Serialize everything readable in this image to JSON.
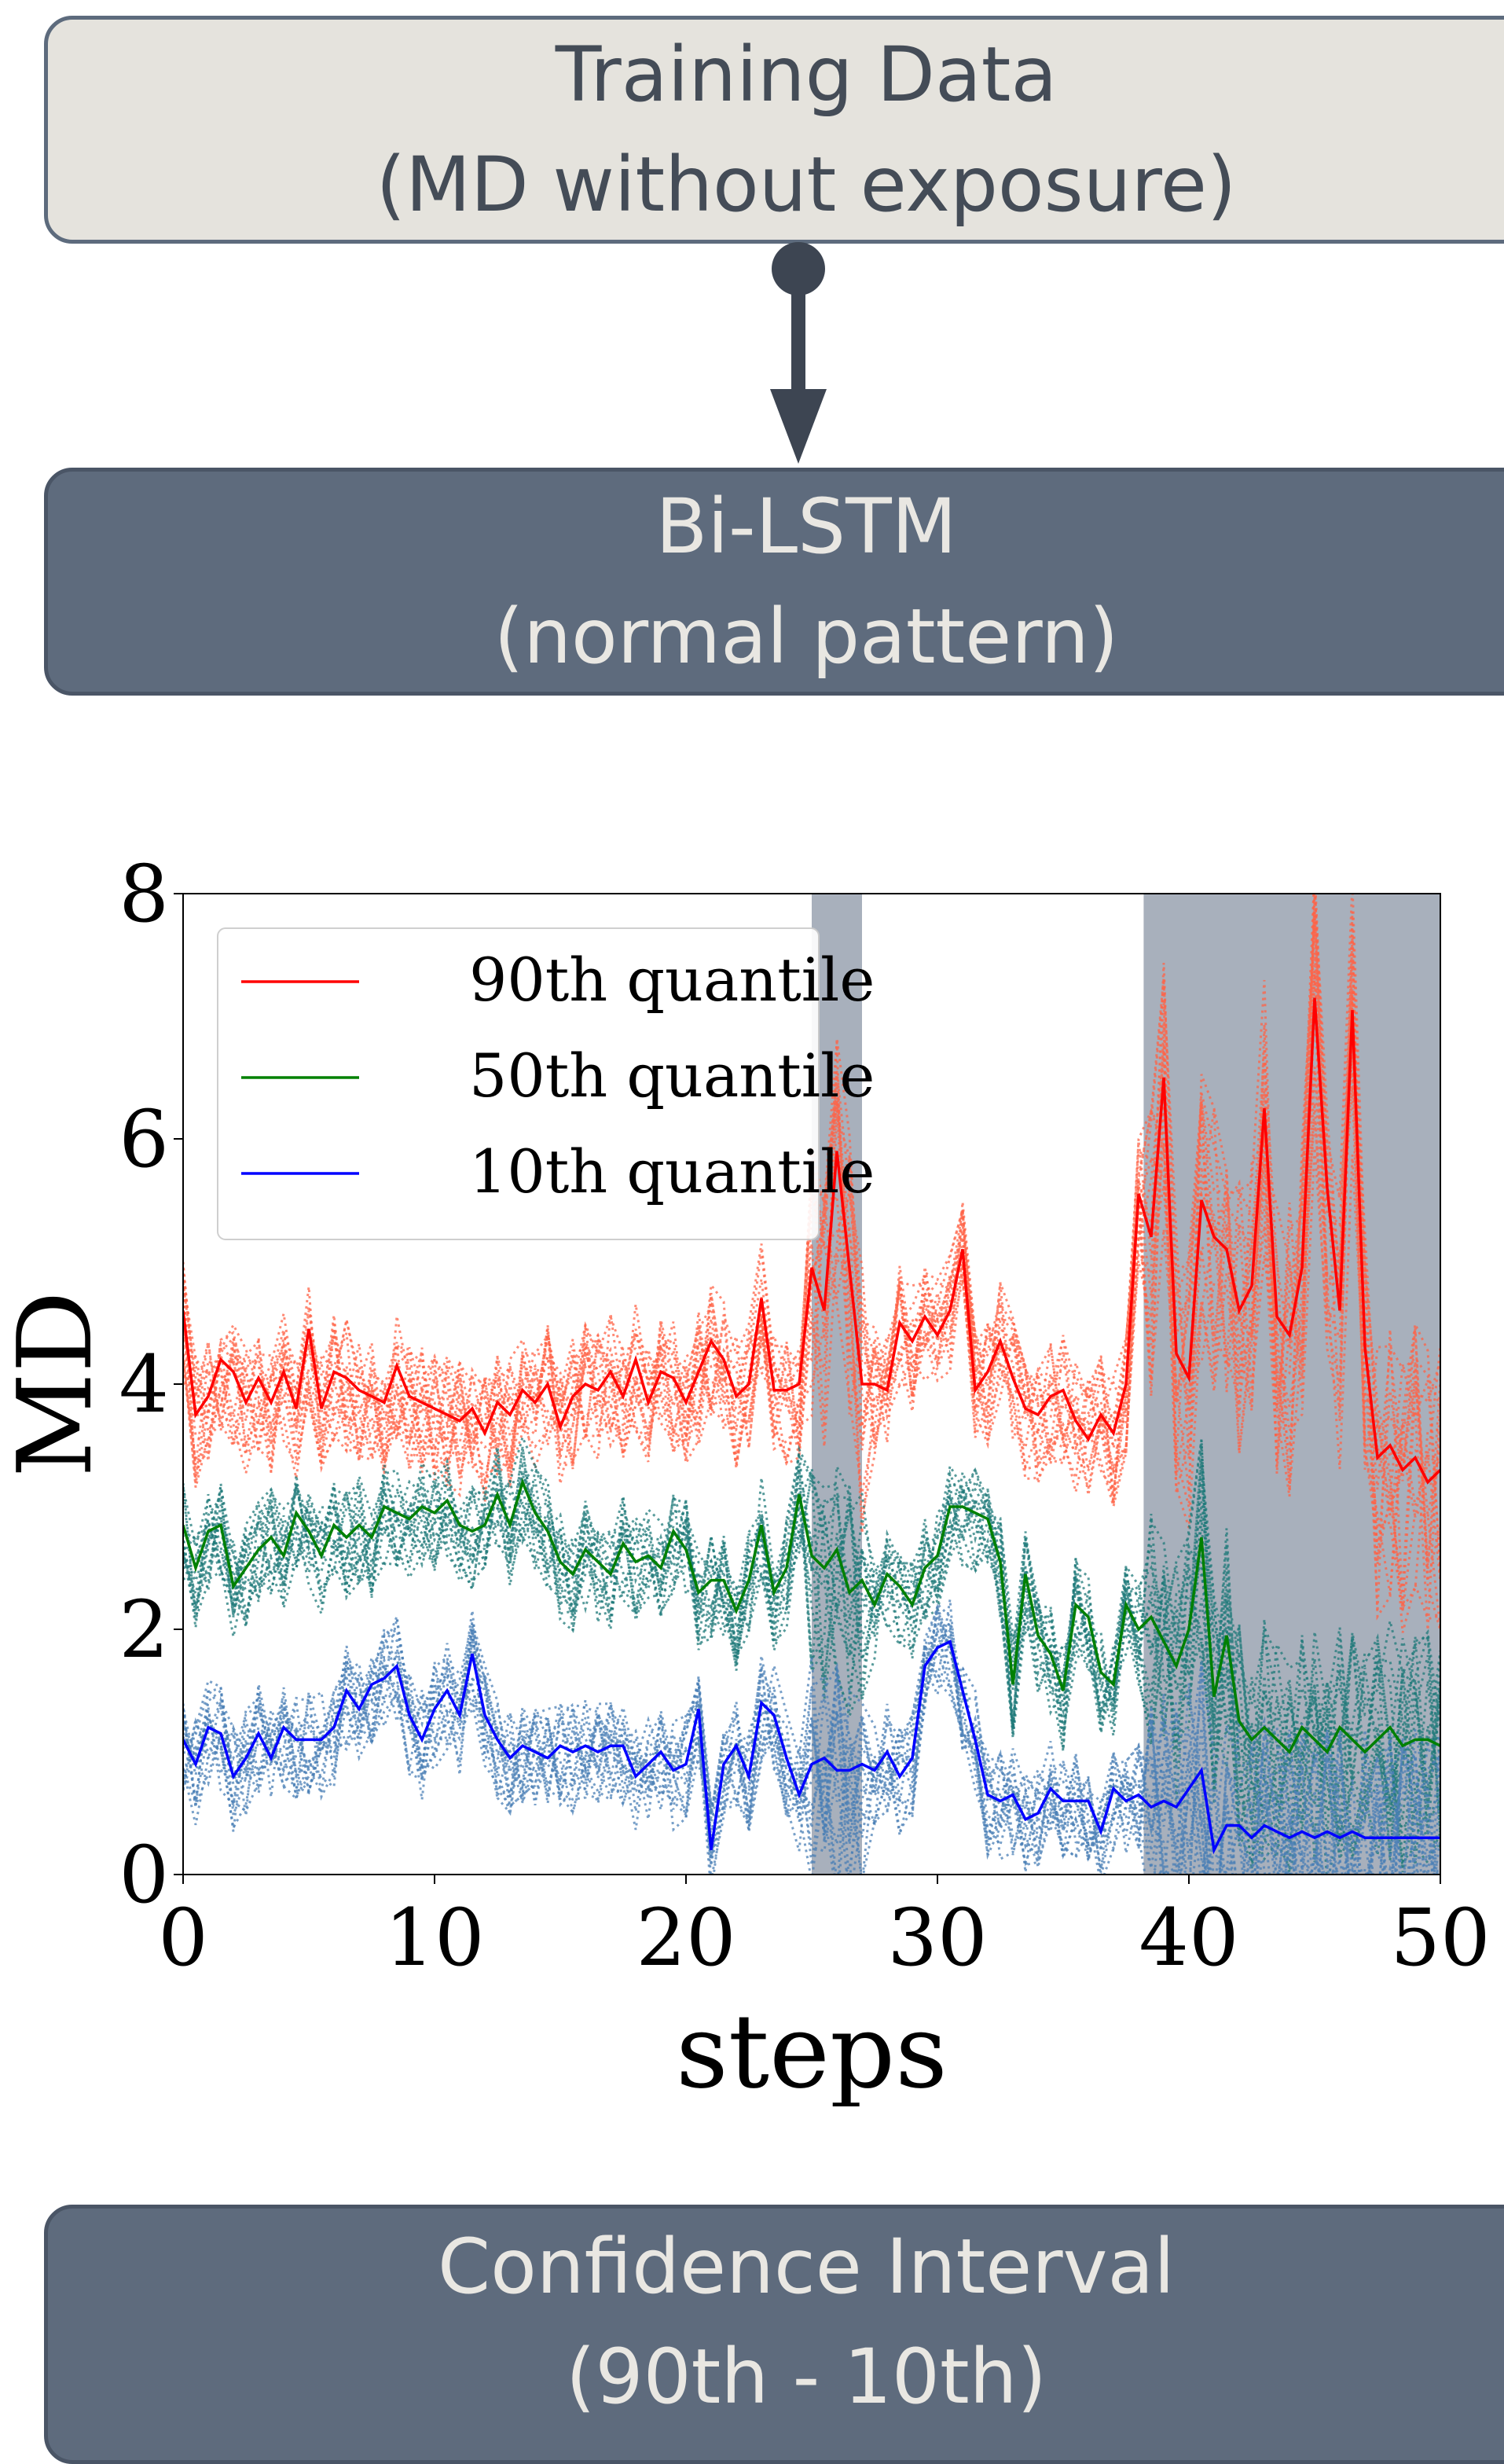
{
  "diagram": {
    "nodes": [
      {
        "id": "training-data",
        "lines": [
          "Training Data",
          "(MD without exposure)"
        ]
      },
      {
        "id": "bi-lstm",
        "lines": [
          "Bi-LSTM",
          "(normal pattern)"
        ]
      },
      {
        "id": "confidence-interval",
        "lines": [
          "Confidence Interval",
          "(90th - 10th)"
        ]
      }
    ],
    "edges": [
      {
        "from": "training-data",
        "to": "bi-lstm"
      }
    ],
    "colors": {
      "light_box": "#e5e3dd",
      "dark_box": "#5e6b7d",
      "arrow": "#3d4552"
    }
  },
  "chart_data": {
    "type": "line",
    "xlabel": "steps",
    "ylabel": "MD",
    "xlim": [
      0,
      50
    ],
    "ylim": [
      0,
      8
    ],
    "xticks": [
      0,
      10,
      20,
      30,
      40,
      50
    ],
    "yticks": [
      0,
      2,
      4,
      6,
      8
    ],
    "legend_position": "top-left",
    "shaded_regions": [
      [
        25,
        27
      ],
      [
        38.2,
        50
      ]
    ],
    "x": [
      0,
      0.5,
      1,
      1.5,
      2,
      2.5,
      3,
      3.5,
      4,
      4.5,
      5,
      5.5,
      6,
      6.5,
      7,
      7.5,
      8,
      8.5,
      9,
      9.5,
      10,
      10.5,
      11,
      11.5,
      12,
      12.5,
      13,
      13.5,
      14,
      14.5,
      15,
      15.5,
      16,
      16.5,
      17,
      17.5,
      18,
      18.5,
      19,
      19.5,
      20,
      20.5,
      21,
      21.5,
      22,
      22.5,
      23,
      23.5,
      24,
      24.5,
      25,
      25.5,
      26,
      26.5,
      27,
      27.5,
      28,
      28.5,
      29,
      29.5,
      30,
      30.5,
      31,
      31.5,
      32,
      32.5,
      33,
      33.5,
      34,
      34.5,
      35,
      35.5,
      36,
      36.5,
      37,
      37.5,
      38,
      38.5,
      39,
      39.5,
      40,
      40.5,
      41,
      41.5,
      42,
      42.5,
      43,
      43.5,
      44,
      44.5,
      45,
      45.5,
      46,
      46.5,
      47,
      47.5,
      48,
      48.5,
      49,
      49.5,
      50
    ],
    "series": [
      {
        "name": "90th quantile",
        "color": "#ff0000",
        "band_color": "#ff6347",
        "values": [
          4.6,
          3.75,
          3.9,
          4.2,
          4.1,
          3.85,
          4.05,
          3.85,
          4.1,
          3.8,
          4.45,
          3.8,
          4.1,
          4.05,
          3.95,
          3.9,
          3.85,
          4.15,
          3.9,
          3.85,
          3.8,
          3.75,
          3.7,
          3.8,
          3.6,
          3.85,
          3.75,
          3.95,
          3.85,
          4.0,
          3.65,
          3.9,
          4.0,
          3.95,
          4.1,
          3.9,
          4.2,
          3.85,
          4.1,
          4.05,
          3.85,
          4.1,
          4.35,
          4.2,
          3.9,
          4.0,
          4.7,
          3.95,
          3.95,
          4.0,
          4.95,
          4.6,
          5.9,
          4.95,
          4.0,
          4.0,
          3.95,
          4.5,
          4.35,
          4.55,
          4.4,
          4.6,
          5.1,
          3.95,
          4.1,
          4.35,
          4.05,
          3.8,
          3.75,
          3.9,
          3.95,
          3.7,
          3.55,
          3.75,
          3.6,
          4.0,
          5.55,
          5.2,
          6.5,
          4.25,
          4.05,
          5.5,
          5.2,
          5.1,
          4.6,
          4.8,
          6.25,
          4.55,
          4.4,
          4.95,
          7.15,
          5.6,
          4.6,
          7.05,
          4.3,
          3.4,
          3.5,
          3.3,
          3.4,
          3.2,
          3.3
        ]
      },
      {
        "name": "50th quantile",
        "color": "#008000",
        "band_color": "#1f7a7a",
        "values": [
          2.85,
          2.5,
          2.8,
          2.85,
          2.35,
          2.5,
          2.65,
          2.75,
          2.6,
          2.95,
          2.8,
          2.6,
          2.85,
          2.75,
          2.85,
          2.75,
          3.0,
          2.95,
          2.9,
          3.0,
          2.95,
          3.05,
          2.85,
          2.8,
          2.85,
          3.1,
          2.85,
          3.2,
          2.95,
          2.8,
          2.55,
          2.45,
          2.65,
          2.55,
          2.45,
          2.7,
          2.55,
          2.6,
          2.5,
          2.8,
          2.65,
          2.3,
          2.4,
          2.4,
          2.15,
          2.4,
          2.85,
          2.3,
          2.5,
          3.1,
          2.6,
          2.5,
          2.65,
          2.3,
          2.4,
          2.2,
          2.45,
          2.35,
          2.2,
          2.5,
          2.6,
          3.0,
          3.0,
          2.95,
          2.9,
          2.55,
          1.55,
          2.45,
          1.95,
          1.8,
          1.5,
          2.2,
          2.1,
          1.65,
          1.55,
          2.2,
          2.0,
          2.1,
          1.9,
          1.7,
          2.0,
          2.75,
          1.45,
          1.95,
          1.25,
          1.1,
          1.2,
          1.1,
          1.0,
          1.2,
          1.1,
          1.0,
          1.2,
          1.1,
          1.0,
          1.1,
          1.2,
          1.05,
          1.1,
          1.1,
          1.05
        ]
      },
      {
        "name": "10th quantile",
        "color": "#0000ff",
        "band_color": "#4a7fb5",
        "values": [
          1.1,
          0.9,
          1.2,
          1.15,
          0.8,
          0.95,
          1.15,
          0.95,
          1.2,
          1.1,
          1.1,
          1.1,
          1.2,
          1.5,
          1.35,
          1.55,
          1.6,
          1.7,
          1.3,
          1.1,
          1.35,
          1.5,
          1.3,
          1.8,
          1.3,
          1.1,
          0.95,
          1.05,
          1.0,
          0.95,
          1.05,
          1.0,
          1.05,
          1.0,
          1.05,
          1.05,
          0.8,
          0.9,
          1.0,
          0.85,
          0.9,
          1.35,
          0.2,
          0.9,
          1.05,
          0.8,
          1.4,
          1.3,
          0.95,
          0.65,
          0.9,
          0.95,
          0.85,
          0.85,
          0.9,
          0.85,
          1.0,
          0.8,
          0.95,
          1.7,
          1.85,
          1.9,
          1.5,
          1.1,
          0.65,
          0.6,
          0.65,
          0.45,
          0.5,
          0.7,
          0.6,
          0.6,
          0.6,
          0.35,
          0.7,
          0.6,
          0.65,
          0.55,
          0.6,
          0.55,
          0.7,
          0.85,
          0.2,
          0.4,
          0.4,
          0.3,
          0.4,
          0.35,
          0.3,
          0.35,
          0.3,
          0.35,
          0.3,
          0.35,
          0.3,
          0.3,
          0.3,
          0.3,
          0.3,
          0.3,
          0.3
        ]
      }
    ]
  }
}
